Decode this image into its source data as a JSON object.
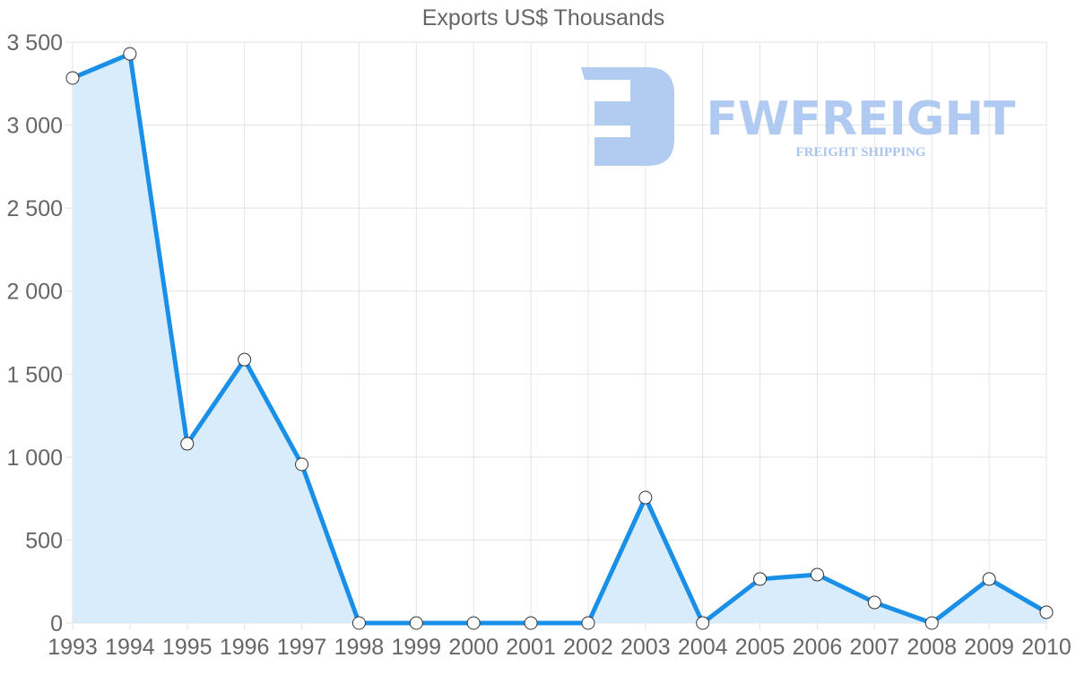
{
  "chart_data": {
    "type": "area",
    "title": "Exports US$ Thousands",
    "xlabel": "",
    "ylabel": "",
    "categories": [
      "1993",
      "1994",
      "1995",
      "1996",
      "1997",
      "1998",
      "1999",
      "2000",
      "2001",
      "2002",
      "2003",
      "2004",
      "2005",
      "2006",
      "2007",
      "2008",
      "2009",
      "2010"
    ],
    "series": [
      {
        "name": "Exports US$ Thousands",
        "values": [
          3284,
          3429,
          1080,
          1587,
          956,
          0,
          0,
          0,
          0,
          0,
          756,
          0,
          265,
          292,
          124,
          0,
          265,
          65
        ]
      }
    ],
    "ylim": [
      0,
      3500
    ],
    "yticks": [
      0,
      500,
      1000,
      1500,
      2000,
      2500,
      3000,
      3500
    ],
    "ytick_labels": [
      "0",
      "500",
      "1 000",
      "1 500",
      "2 000",
      "2 500",
      "3 000",
      "3 500"
    ],
    "grid": true,
    "legend": "none",
    "colors": {
      "line": "#1a8fe8",
      "fill": "#d7ebfb",
      "grid": "#e3e3e3",
      "text": "#666666"
    }
  },
  "watermark": {
    "brand": "FWFREIGHT",
    "tagline": "FREIGHT SHIPPING",
    "color": "#a9c5f0"
  }
}
